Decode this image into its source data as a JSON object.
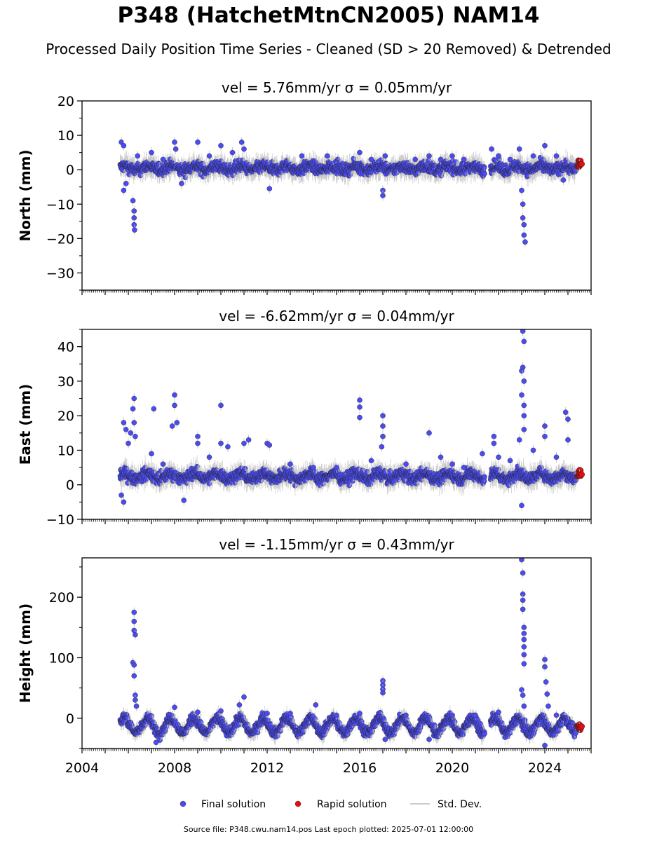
{
  "title": "P348 (HatchetMtnCN2005) NAM14",
  "subtitle": "Processed Daily Position Time Series - Cleaned (SD > 20 Removed) & Detrended",
  "footer": "Source file: P348.cwu.nam14.pos  Last epoch plotted: 2025-07-01 12:00:00",
  "colors": {
    "final": "#4b4bf0",
    "rapid": "#e01010",
    "stddev": "#bbbbbb",
    "edge": "#222222"
  },
  "chart_data": [
    {
      "type": "scatter",
      "title": "vel = 5.76mm/yr   σ = 0.05mm/yr",
      "ylabel": "North (mm)",
      "xlim": [
        2004,
        2026
      ],
      "ylim": [
        -35,
        20
      ],
      "yticks": [
        20,
        10,
        0,
        -10,
        -20,
        -30
      ],
      "ytick_labels": [
        "20",
        "10",
        "0",
        "−10",
        "−20",
        "−30"
      ],
      "series": [
        {
          "name": "Final solution",
          "points": [
            [
              2005.7,
              8
            ],
            [
              2005.8,
              7
            ],
            [
              2005.8,
              -6
            ],
            [
              2005.9,
              -4
            ],
            [
              2006.2,
              -9
            ],
            [
              2006.25,
              -12
            ],
            [
              2006.25,
              -14
            ],
            [
              2006.25,
              -16
            ],
            [
              2006.27,
              -17.5
            ],
            [
              2006.4,
              4
            ],
            [
              2007.0,
              5
            ],
            [
              2007.5,
              3
            ],
            [
              2008.0,
              8
            ],
            [
              2008.05,
              6
            ],
            [
              2008.3,
              -4
            ],
            [
              2009.0,
              8
            ],
            [
              2009.5,
              4
            ],
            [
              2010.0,
              7
            ],
            [
              2010.5,
              5
            ],
            [
              2010.9,
              8
            ],
            [
              2011.0,
              6
            ],
            [
              2012.1,
              -5.5
            ],
            [
              2013.5,
              4
            ],
            [
              2014.6,
              4
            ],
            [
              2016.0,
              5
            ],
            [
              2016.5,
              3
            ],
            [
              2017.0,
              -6
            ],
            [
              2017.0,
              -7.5
            ],
            [
              2017.1,
              4
            ],
            [
              2018.4,
              3
            ],
            [
              2019.0,
              4
            ],
            [
              2019.5,
              3
            ],
            [
              2020.0,
              4
            ],
            [
              2020.5,
              3
            ],
            [
              2021.7,
              6
            ],
            [
              2022.0,
              4
            ],
            [
              2022.5,
              3
            ],
            [
              2022.9,
              6
            ],
            [
              2023.0,
              -6
            ],
            [
              2023.05,
              -10
            ],
            [
              2023.05,
              -14
            ],
            [
              2023.1,
              -16
            ],
            [
              2023.1,
              -19
            ],
            [
              2023.15,
              -21
            ],
            [
              2023.5,
              4
            ],
            [
              2024.0,
              7
            ],
            [
              2024.5,
              4
            ],
            [
              2024.8,
              -3
            ]
          ]
        },
        {
          "name": "Rapid solution",
          "points": [
            [
              2025.4,
              1
            ],
            [
              2025.45,
              2.5
            ],
            [
              2025.5,
              1.5
            ]
          ]
        }
      ]
    },
    {
      "type": "scatter",
      "title": "vel = -6.62mm/yr   σ = 0.04mm/yr",
      "ylabel": "East (mm)",
      "xlim": [
        2004,
        2026
      ],
      "ylim": [
        -10,
        45
      ],
      "yticks": [
        40,
        30,
        20,
        10,
        0,
        -10
      ],
      "ytick_labels": [
        "40",
        "30",
        "20",
        "10",
        "0",
        "−10"
      ],
      "series": [
        {
          "name": "Final solution",
          "points": [
            [
              2005.8,
              18
            ],
            [
              2005.9,
              16
            ],
            [
              2006.0,
              12
            ],
            [
              2006.1,
              15
            ],
            [
              2006.2,
              22
            ],
            [
              2006.25,
              25
            ],
            [
              2006.25,
              18
            ],
            [
              2006.3,
              14
            ],
            [
              2005.8,
              -5
            ],
            [
              2005.7,
              -3
            ],
            [
              2007.0,
              9
            ],
            [
              2007.1,
              22
            ],
            [
              2007.5,
              6
            ],
            [
              2008.0,
              26
            ],
            [
              2008.0,
              23
            ],
            [
              2007.9,
              17
            ],
            [
              2008.1,
              18
            ],
            [
              2008.4,
              -4.5
            ],
            [
              2009.0,
              14
            ],
            [
              2009.0,
              12
            ],
            [
              2009.5,
              8
            ],
            [
              2010.0,
              23
            ],
            [
              2010.0,
              12
            ],
            [
              2010.3,
              11
            ],
            [
              2011.0,
              12
            ],
            [
              2011.2,
              13
            ],
            [
              2012.0,
              12
            ],
            [
              2012.1,
              11.5
            ],
            [
              2013.0,
              6
            ],
            [
              2014.0,
              5
            ],
            [
              2015.0,
              5
            ],
            [
              2016.0,
              24.5
            ],
            [
              2016.0,
              22.5
            ],
            [
              2016.0,
              19.5
            ],
            [
              2016.5,
              7
            ],
            [
              2017.0,
              17
            ],
            [
              2017.0,
              20
            ],
            [
              2017.0,
              14
            ],
            [
              2016.95,
              11
            ],
            [
              2018.0,
              6
            ],
            [
              2019.0,
              15
            ],
            [
              2019.5,
              8
            ],
            [
              2020.0,
              6
            ],
            [
              2020.5,
              5
            ],
            [
              2021.3,
              9
            ],
            [
              2021.8,
              14
            ],
            [
              2021.8,
              12
            ],
            [
              2022.0,
              8
            ],
            [
              2022.5,
              7
            ],
            [
              2022.9,
              13
            ],
            [
              2023.0,
              26
            ],
            [
              2023.0,
              33
            ],
            [
              2023.05,
              34
            ],
            [
              2023.05,
              44.5
            ],
            [
              2023.1,
              41.5
            ],
            [
              2023.1,
              30
            ],
            [
              2023.1,
              23
            ],
            [
              2023.1,
              20
            ],
            [
              2023.1,
              16
            ],
            [
              2023.0,
              -6
            ],
            [
              2023.5,
              10
            ],
            [
              2024.0,
              17
            ],
            [
              2024.0,
              14
            ],
            [
              2024.5,
              8
            ],
            [
              2024.9,
              21
            ],
            [
              2025.0,
              19
            ],
            [
              2025.0,
              13
            ]
          ]
        },
        {
          "name": "Rapid solution",
          "points": [
            [
              2025.4,
              2.5
            ],
            [
              2025.45,
              4
            ],
            [
              2025.5,
              3
            ]
          ]
        }
      ]
    },
    {
      "type": "scatter",
      "title": "vel = -1.15mm/yr   σ = 0.43mm/yr",
      "ylabel": "Height (mm)",
      "xlim": [
        2004,
        2026
      ],
      "ylim": [
        -50,
        265
      ],
      "yticks": [
        200,
        100,
        0
      ],
      "ytick_labels": [
        "200",
        "100",
        "0"
      ],
      "xticks": [
        2004,
        2008,
        2012,
        2016,
        2020,
        2024
      ],
      "series": [
        {
          "name": "Final solution",
          "points": [
            [
              2006.25,
              175
            ],
            [
              2006.25,
              160
            ],
            [
              2006.25,
              145
            ],
            [
              2006.3,
              138
            ],
            [
              2006.2,
              92
            ],
            [
              2006.25,
              88
            ],
            [
              2006.25,
              70
            ],
            [
              2006.3,
              38
            ],
            [
              2006.3,
              30
            ],
            [
              2006.35,
              20
            ],
            [
              2007.2,
              -40
            ],
            [
              2008.0,
              18
            ],
            [
              2009.0,
              10
            ],
            [
              2010.0,
              12
            ],
            [
              2010.8,
              22
            ],
            [
              2011.0,
              35
            ],
            [
              2012.0,
              8
            ],
            [
              2013.0,
              8
            ],
            [
              2014.1,
              22
            ],
            [
              2015.0,
              5
            ],
            [
              2016.0,
              8
            ],
            [
              2017.0,
              62
            ],
            [
              2017.0,
              55
            ],
            [
              2017.0,
              48
            ],
            [
              2017.0,
              42
            ],
            [
              2017.1,
              -35
            ],
            [
              2018.0,
              5
            ],
            [
              2019.0,
              -35
            ],
            [
              2020.0,
              5
            ],
            [
              2021.0,
              5
            ],
            [
              2022.0,
              10
            ],
            [
              2023.0,
              262
            ],
            [
              2023.05,
              240
            ],
            [
              2023.05,
              205
            ],
            [
              2023.05,
              195
            ],
            [
              2023.05,
              180
            ],
            [
              2023.1,
              150
            ],
            [
              2023.1,
              140
            ],
            [
              2023.1,
              130
            ],
            [
              2023.1,
              118
            ],
            [
              2023.1,
              105
            ],
            [
              2023.1,
              90
            ],
            [
              2023.0,
              47
            ],
            [
              2023.05,
              38
            ],
            [
              2023.1,
              20
            ],
            [
              2024.0,
              97
            ],
            [
              2024.0,
              85
            ],
            [
              2024.05,
              60
            ],
            [
              2024.1,
              40
            ],
            [
              2024.15,
              20
            ],
            [
              2024.0,
              -45
            ],
            [
              2024.5,
              5
            ]
          ]
        },
        {
          "name": "Rapid solution",
          "points": [
            [
              2025.4,
              -12
            ],
            [
              2025.45,
              -18
            ],
            [
              2025.5,
              -15
            ]
          ]
        }
      ]
    }
  ],
  "legend": {
    "placement": "bottom-center",
    "items": [
      {
        "label": "Final solution",
        "marker": "circle"
      },
      {
        "label": "Rapid solution",
        "marker": "circle"
      },
      {
        "label": "Std. Dev.",
        "marker": "line"
      }
    ]
  }
}
